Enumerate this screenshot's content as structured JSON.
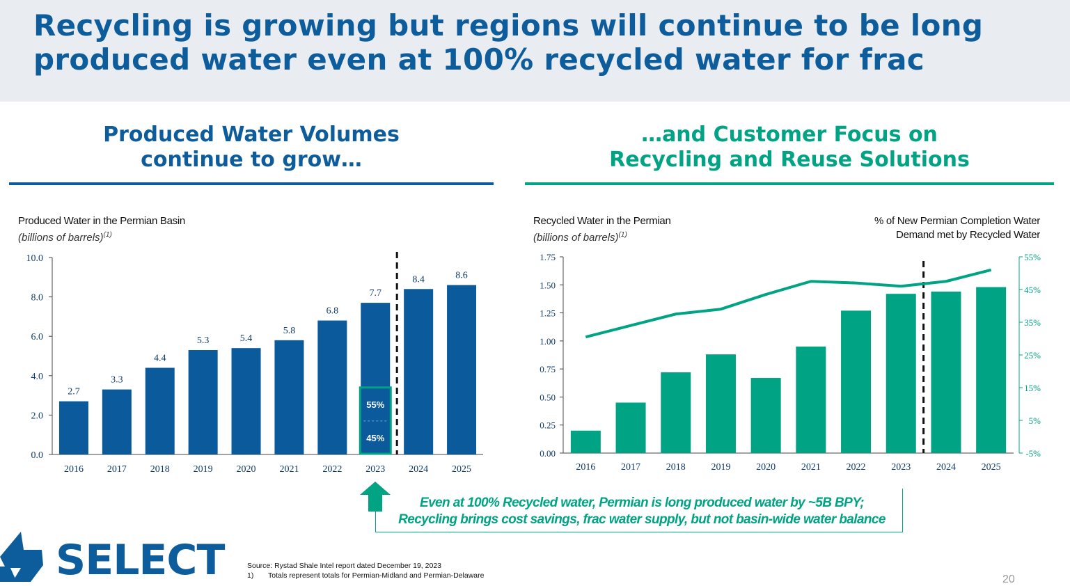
{
  "slide": {
    "title": "Recycling is growing but regions will continue to be long produced water even at 100% recycled water for frac",
    "left_heading_line1": "Produced Water Volumes",
    "left_heading_line2": "continue to grow…",
    "right_heading_line1": "…and Customer Focus on",
    "right_heading_line2": "Recycling and Reuse Solutions",
    "callout_line1": "Even at 100% Recycled water, Permian is long produced water by ~5B BPY;",
    "callout_line2": "Recycling brings cost savings, frac water supply, but not basin-wide water balance",
    "logo_text": "SELECT",
    "source": "Source:  Rystad Shale Intel report dated December 19, 2023",
    "footnote_num": "1)",
    "footnote_text": "Totals represent totals for Permian-Midland and Permian-Delaware",
    "page_number": "20",
    "colors": {
      "blue": "#0d5c9c",
      "bar_blue": "#0a5a9c",
      "green": "#00a383",
      "band": "#e9edf1"
    }
  },
  "chart_data": [
    {
      "type": "bar",
      "title": "Produced Water in the Permian Basin",
      "subtitle": "(billions of barrels)",
      "subtitle_sup": "(1)",
      "categories": [
        "2016",
        "2017",
        "2018",
        "2019",
        "2020",
        "2021",
        "2022",
        "2023",
        "2024",
        "2025"
      ],
      "values": [
        2.7,
        3.3,
        4.4,
        5.3,
        5.4,
        5.8,
        6.8,
        7.7,
        8.4,
        8.6
      ],
      "value_labels": [
        "2.7",
        "3.3",
        "4.4",
        "5.3",
        "5.4",
        "5.8",
        "6.8",
        "7.7",
        "8.4",
        "8.6"
      ],
      "ylim": [
        0,
        10
      ],
      "yticks": [
        "0.0",
        "2.0",
        "4.0",
        "6.0",
        "8.0",
        "10.0"
      ],
      "forecast_divider_after": "2023",
      "highlight": {
        "category": "2023",
        "upper_label": "55%",
        "lower_label": "45%",
        "split_value": 1.7,
        "top_value": 3.4
      },
      "color": "#0a5a9c"
    },
    {
      "type": "bar",
      "title": "Recycled Water in the Permian",
      "subtitle": "(billions of barrels)",
      "subtitle_sup": "(1)",
      "y2_title_line1": "% of New Permian Completion Water",
      "y2_title_line2": "Demand met by Recycled Water",
      "categories": [
        "2016",
        "2017",
        "2018",
        "2019",
        "2020",
        "2021",
        "2022",
        "2023",
        "2024",
        "2025"
      ],
      "series": [
        {
          "type": "bar",
          "values": [
            0.2,
            0.45,
            0.72,
            0.88,
            0.67,
            0.95,
            1.27,
            1.42,
            1.44,
            1.48
          ]
        },
        {
          "type": "line",
          "axis": "right",
          "values": [
            30.5,
            34,
            37.5,
            39,
            43.5,
            47.5,
            47,
            46,
            47.5,
            51
          ]
        }
      ],
      "ylim": [
        0,
        1.75
      ],
      "yticks": [
        "0.00",
        "0.25",
        "0.50",
        "0.75",
        "1.00",
        "1.25",
        "1.50",
        "1.75"
      ],
      "y2lim": [
        -5,
        55
      ],
      "y2ticks": [
        "-5%",
        "5%",
        "15%",
        "25%",
        "35%",
        "45%",
        "55%"
      ],
      "forecast_divider_after": "2023",
      "color": "#00a383"
    }
  ]
}
